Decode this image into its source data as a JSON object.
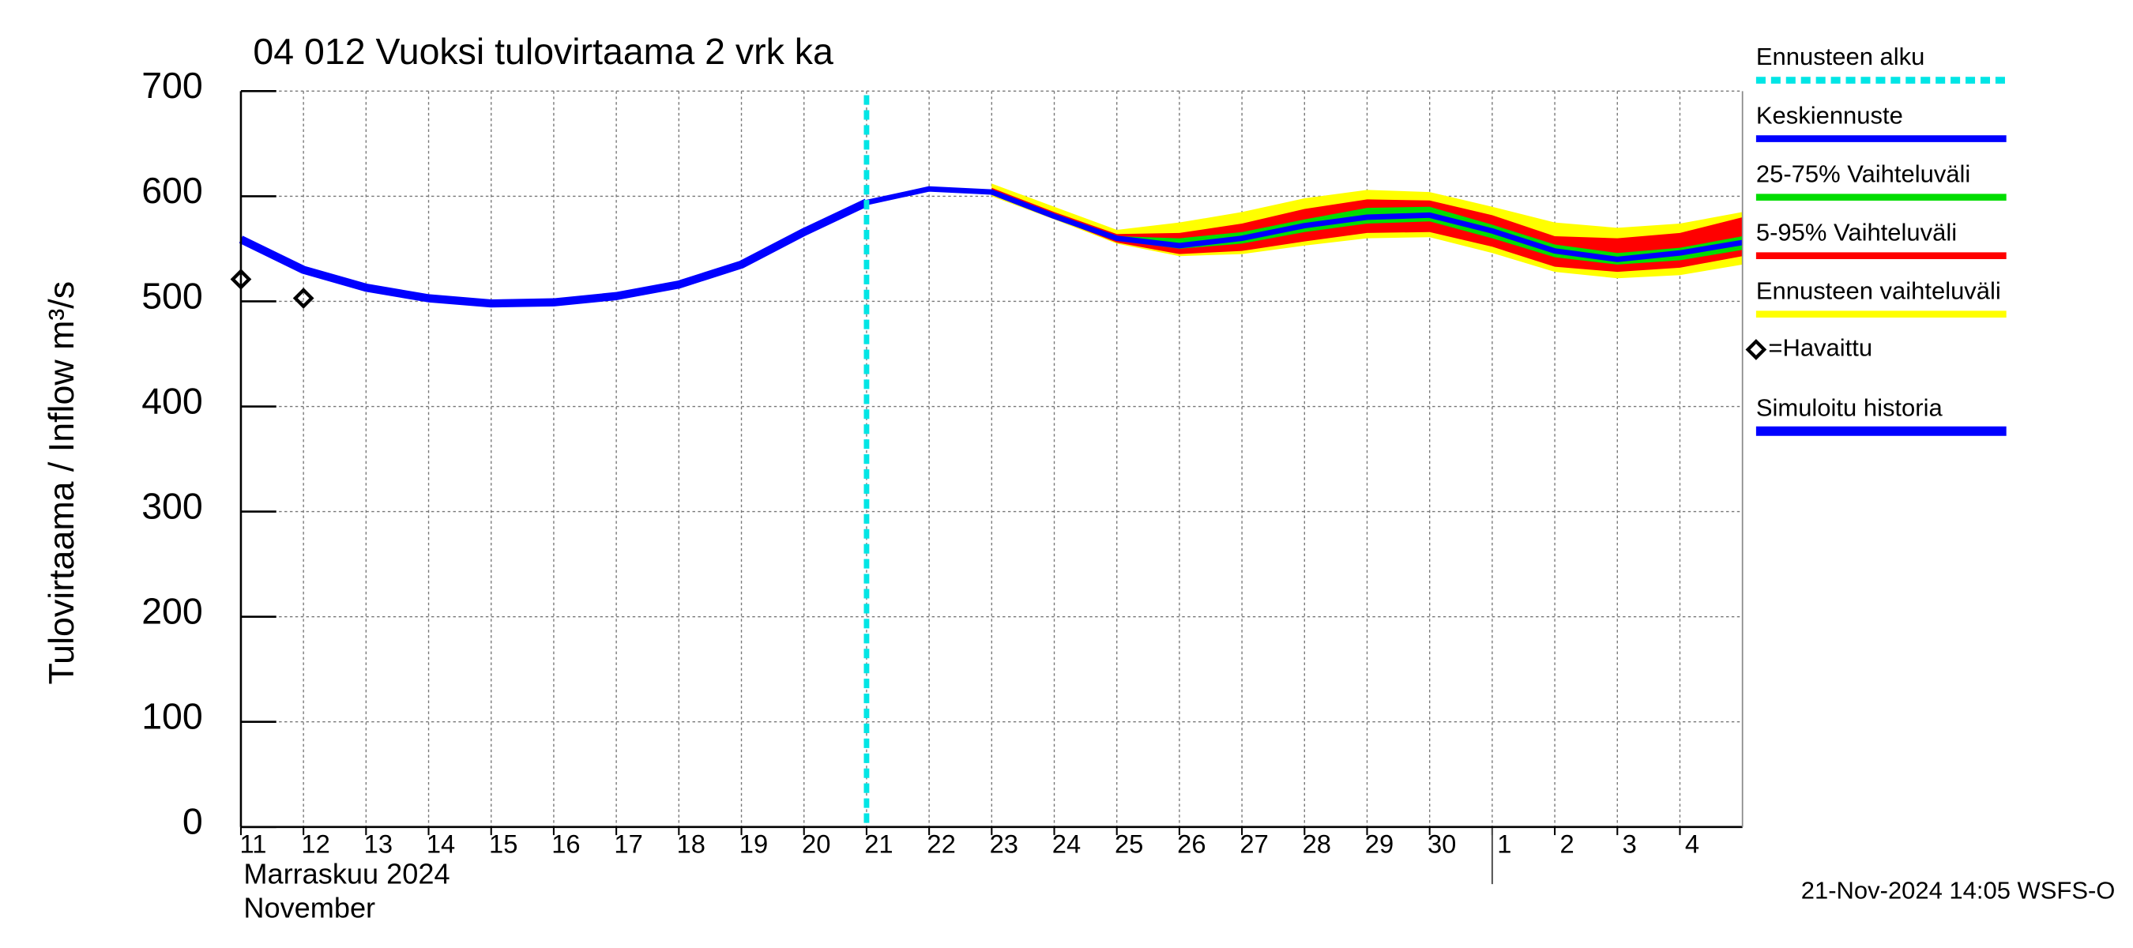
{
  "chart_data": {
    "type": "line",
    "title": "04 012 Vuoksi tulovirtaama 2 vrk ka",
    "y_label": "Tulovirtaama / Inflow   m³/s",
    "x_label_lines": [
      "Marraskuu 2024",
      "November"
    ],
    "footer": "21-Nov-2024 14:05 WSFS-O",
    "ylim": [
      0,
      700
    ],
    "yticks": [
      0,
      100,
      200,
      300,
      400,
      500,
      600,
      700
    ],
    "xlim": [
      "2024-11-11",
      "2024-12-05"
    ],
    "xticks": [
      {
        "value": "2024-11-11",
        "label": "11"
      },
      {
        "value": "2024-11-12",
        "label": "12"
      },
      {
        "value": "2024-11-13",
        "label": "13"
      },
      {
        "value": "2024-11-14",
        "label": "14"
      },
      {
        "value": "2024-11-15",
        "label": "15"
      },
      {
        "value": "2024-11-16",
        "label": "16"
      },
      {
        "value": "2024-11-17",
        "label": "17"
      },
      {
        "value": "2024-11-18",
        "label": "18"
      },
      {
        "value": "2024-11-19",
        "label": "19"
      },
      {
        "value": "2024-11-20",
        "label": "20"
      },
      {
        "value": "2024-11-21",
        "label": "21"
      },
      {
        "value": "2024-11-22",
        "label": "22"
      },
      {
        "value": "2024-11-23",
        "label": "23"
      },
      {
        "value": "2024-11-24",
        "label": "24"
      },
      {
        "value": "2024-11-25",
        "label": "25"
      },
      {
        "value": "2024-11-26",
        "label": "26"
      },
      {
        "value": "2024-11-27",
        "label": "27"
      },
      {
        "value": "2024-11-28",
        "label": "28"
      },
      {
        "value": "2024-11-29",
        "label": "29"
      },
      {
        "value": "2024-11-30",
        "label": "30"
      },
      {
        "value": "2024-12-01",
        "label": "1"
      },
      {
        "value": "2024-12-02",
        "label": "2"
      },
      {
        "value": "2024-12-03",
        "label": "3"
      },
      {
        "value": "2024-12-04",
        "label": "4"
      }
    ],
    "month_divider": "2024-12-01",
    "grid": true,
    "series": [
      {
        "name": "Ennusteen alku",
        "style": "vline",
        "color": "#00e5e5",
        "x": "2024-11-21"
      },
      {
        "name": "Keskiennuste",
        "style": "line",
        "color": "#0000ff",
        "x": [
          "2024-11-21",
          "2024-11-22",
          "2024-11-23",
          "2024-11-24",
          "2024-11-25",
          "2024-11-26",
          "2024-11-27",
          "2024-11-28",
          "2024-11-29",
          "2024-11-30",
          "2024-12-01",
          "2024-12-02",
          "2024-12-03",
          "2024-12-04",
          "2024-12-05"
        ],
        "values": [
          594,
          607,
          604,
          581,
          560,
          553,
          560,
          572,
          580,
          582,
          567,
          548,
          540,
          546,
          556
        ]
      },
      {
        "name": "25-75% Vaihteluväli",
        "style": "band",
        "color": "#00dd00",
        "x": [
          "2024-11-23",
          "2024-11-24",
          "2024-11-25",
          "2024-11-26",
          "2024-11-27",
          "2024-11-28",
          "2024-11-29",
          "2024-11-30",
          "2024-12-01",
          "2024-12-02",
          "2024-12-03",
          "2024-12-04",
          "2024-12-05"
        ],
        "low": [
          603,
          580,
          558,
          550,
          555,
          566,
          574,
          576,
          560,
          542,
          535,
          539,
          549
        ],
        "high": [
          606,
          583,
          562,
          560,
          566,
          578,
          589,
          590,
          573,
          554,
          546,
          551,
          562
        ]
      },
      {
        "name": "5-95% Vaihteluväli",
        "style": "band",
        "color": "#ff0000",
        "x": [
          "2024-11-23",
          "2024-11-24",
          "2024-11-25",
          "2024-11-26",
          "2024-11-27",
          "2024-11-28",
          "2024-11-29",
          "2024-11-30",
          "2024-12-01",
          "2024-12-02",
          "2024-12-03",
          "2024-12-04",
          "2024-12-05"
        ],
        "low": [
          602,
          579,
          556,
          545,
          548,
          557,
          565,
          566,
          552,
          533,
          528,
          532,
          543
        ],
        "high": [
          608,
          585,
          564,
          565,
          574,
          588,
          597,
          596,
          582,
          562,
          560,
          565,
          580
        ]
      },
      {
        "name": "Ennusteen vaihteluväli",
        "style": "band",
        "color": "#ffff00",
        "x": [
          "2024-11-23",
          "2024-11-24",
          "2024-11-25",
          "2024-11-26",
          "2024-11-27",
          "2024-11-28",
          "2024-11-29",
          "2024-11-30",
          "2024-12-01",
          "2024-12-02",
          "2024-12-03",
          "2024-12-04",
          "2024-12-05"
        ],
        "low": [
          600,
          578,
          555,
          543,
          545,
          553,
          560,
          561,
          546,
          528,
          522,
          525,
          535
        ],
        "high": [
          612,
          590,
          568,
          575,
          585,
          598,
          606,
          604,
          590,
          575,
          570,
          574,
          585
        ]
      },
      {
        "name": "=Havaittu",
        "style": "marker",
        "color": "#000000",
        "x": [
          "2024-11-11",
          "2024-11-12"
        ],
        "values": [
          521,
          503
        ]
      },
      {
        "name": "Simuloitu historia",
        "style": "history",
        "color": "#0000ff",
        "x": [
          "2024-11-11",
          "2024-11-12",
          "2024-11-13",
          "2024-11-14",
          "2024-11-15",
          "2024-11-16",
          "2024-11-17",
          "2024-11-18",
          "2024-11-19",
          "2024-11-20",
          "2024-11-21"
        ],
        "values": [
          559,
          530,
          513,
          503,
          498,
          499,
          505,
          516,
          535,
          566,
          594
        ]
      }
    ]
  }
}
